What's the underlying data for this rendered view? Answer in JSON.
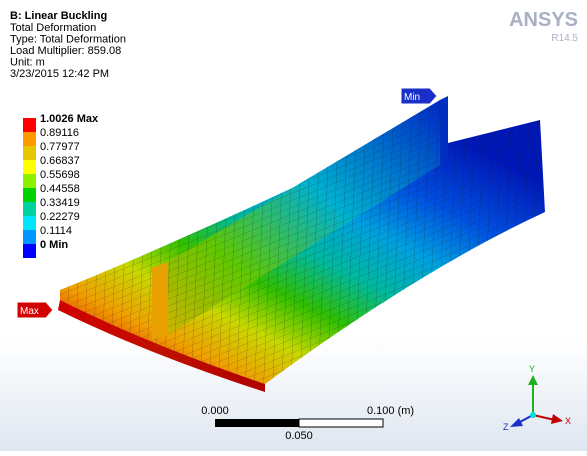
{
  "header": {
    "title": "B: Linear Buckling",
    "lines": [
      "Total Deformation",
      "Type: Total Deformation",
      "Load Multiplier: 859.08",
      "Unit: m",
      "3/23/2015 12:42 PM"
    ]
  },
  "legend": {
    "labels": [
      "1.0026 Max",
      "0.89116",
      "0.77977",
      "0.66837",
      "0.55698",
      "0.44558",
      "0.33419",
      "0.22279",
      "0.1114",
      "0 Min"
    ]
  },
  "logo": {
    "brand": "ANSYS",
    "version": "R14.5"
  },
  "probes": {
    "min": "Min",
    "max": "Max"
  },
  "scale_bar": {
    "left": "0.000",
    "right": "0.100 (m)",
    "middle": "0.050"
  },
  "triad": {
    "y": "Y",
    "x": "X",
    "z": "Z"
  }
}
